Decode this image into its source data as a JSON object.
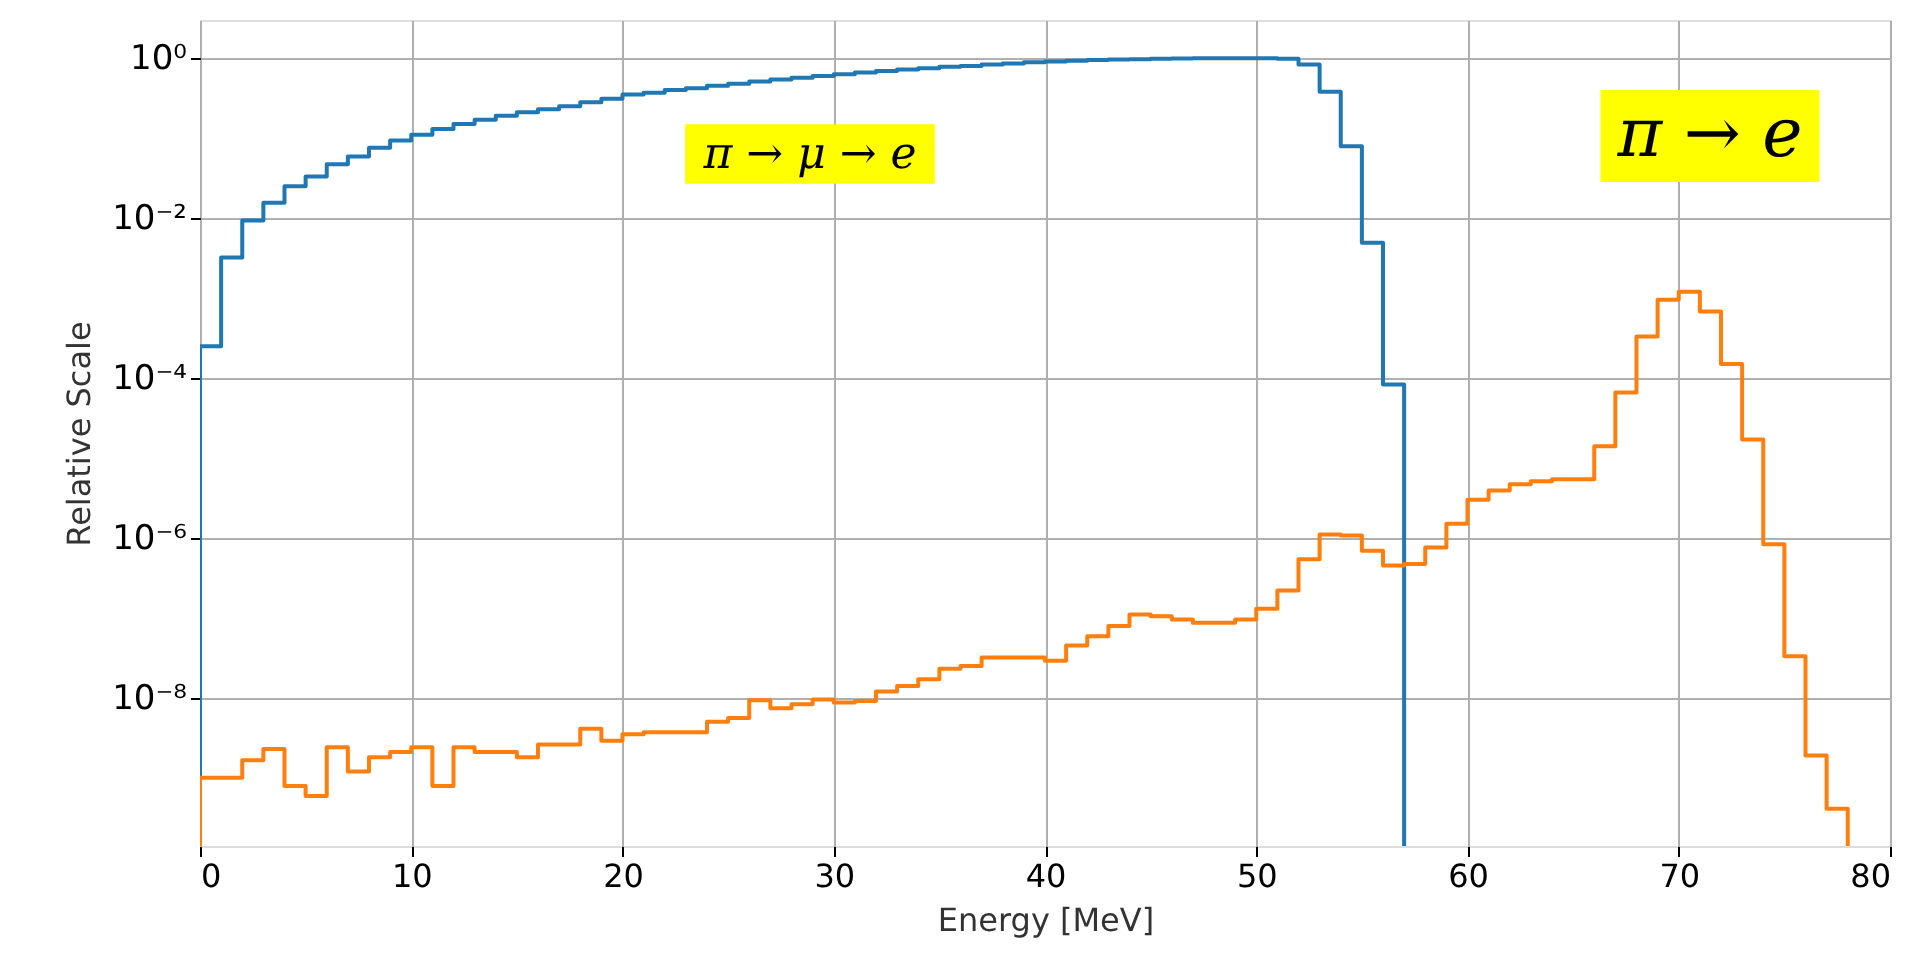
{
  "chart_data": {
    "type": "histogram",
    "xlabel": "Energy [MeV]",
    "ylabel": "Relative Scale",
    "xlim": [
      0,
      80
    ],
    "xticks": [
      0,
      10,
      20,
      30,
      40,
      50,
      60,
      70,
      80
    ],
    "ylim": [
      1.4e-10,
      3
    ],
    "yticks": [
      {
        "value": 1,
        "label": "10⁰"
      },
      {
        "value": 0.01,
        "label": "10⁻²"
      },
      {
        "value": 0.0001,
        "label": "10⁻⁴"
      },
      {
        "value": 1e-06,
        "label": "10⁻⁶"
      },
      {
        "value": 1e-08,
        "label": "10⁻⁸"
      }
    ],
    "log": "y",
    "grid": true,
    "bins": [
      0,
      1,
      2,
      3,
      4,
      5,
      6,
      7,
      8,
      9,
      10,
      11,
      12,
      13,
      14,
      15,
      16,
      17,
      18,
      19,
      20,
      21,
      22,
      23,
      24,
      25,
      26,
      27,
      28,
      29,
      30,
      31,
      32,
      33,
      34,
      35,
      36,
      37,
      38,
      39,
      40,
      41,
      42,
      43,
      44,
      45,
      46,
      47,
      48,
      49,
      50,
      51,
      52,
      53,
      54,
      55,
      56,
      57,
      58,
      59,
      60,
      61,
      62,
      63,
      64,
      65,
      66,
      67,
      68,
      69,
      70,
      71,
      72,
      73,
      74,
      75,
      76,
      77,
      78
    ],
    "series": [
      {
        "name": "π → μ → e",
        "color": "#1f77b4",
        "bins": [
          0,
          1,
          2,
          3,
          4,
          5,
          6,
          7,
          8,
          9,
          10,
          11,
          12,
          13,
          14,
          15,
          16,
          17,
          18,
          19,
          20,
          21,
          22,
          23,
          24,
          25,
          26,
          27,
          28,
          29,
          30,
          31,
          32,
          33,
          34,
          35,
          36,
          37,
          38,
          39,
          40,
          41,
          42,
          43,
          44,
          45,
          46,
          47,
          48,
          49,
          50,
          51,
          52,
          53,
          54,
          55,
          56,
          57
        ],
        "values": [
          0.00025,
          0.0032,
          0.0093,
          0.0155,
          0.025,
          0.033,
          0.047,
          0.059,
          0.076,
          0.093,
          0.11,
          0.13,
          0.15,
          0.17,
          0.19,
          0.21,
          0.23,
          0.25,
          0.28,
          0.31,
          0.35,
          0.37,
          0.4,
          0.42,
          0.45,
          0.48,
          0.51,
          0.54,
          0.57,
          0.6,
          0.63,
          0.66,
          0.69,
          0.72,
          0.75,
          0.78,
          0.8,
          0.83,
          0.86,
          0.89,
          0.91,
          0.93,
          0.95,
          0.96,
          0.97,
          0.98,
          0.99,
          1.0,
          1.0,
          1.0,
          1.0,
          0.98,
          0.83,
          0.38,
          0.079,
          0.0049,
          8.3e-05
        ]
      },
      {
        "name": "π → e",
        "color": "#ff7f0e",
        "values": [
          1e-09,
          1e-09,
          1.66e-09,
          2.29e-09,
          7.9e-10,
          5.9e-10,
          2.4e-09,
          1.2e-09,
          1.8e-09,
          2.1e-09,
          2.4e-09,
          7.9e-10,
          2.4e-09,
          2.1e-09,
          2.1e-09,
          1.8e-09,
          2.6e-09,
          2.6e-09,
          4.1e-09,
          2.9e-09,
          3.5e-09,
          3.7e-09,
          3.7e-09,
          3.7e-09,
          5e-09,
          5.6e-09,
          9.3e-09,
          7.4e-09,
          8.3e-09,
          9.5e-09,
          8.7e-09,
          9.1e-09,
          1.2e-08,
          1.4e-08,
          1.7e-08,
          2.3e-08,
          2.5e-08,
          3.2e-08,
          3.2e-08,
          3.2e-08,
          2.9e-08,
          4.5e-08,
          5.9e-08,
          7.9e-08,
          1.1e-07,
          1.05e-07,
          9.5e-08,
          8.7e-08,
          8.7e-08,
          9.5e-08,
          1.3e-07,
          2.2e-07,
          5.4e-07,
          1.1e-06,
          1.07e-06,
          6.9e-07,
          4.5e-07,
          4.7e-07,
          7.6e-07,
          1.5e-06,
          3e-06,
          3.9e-06,
          4.7e-06,
          5.1e-06,
          5.4e-06,
          5.4e-06,
          1.4e-05,
          6.6e-05,
          0.00033,
          0.00095,
          0.0012,
          0.00068,
          0.00015,
          1.7e-05,
          8.3e-07,
          3.3e-08,
          1.9e-09,
          4.1e-10
        ]
      }
    ]
  }
}
